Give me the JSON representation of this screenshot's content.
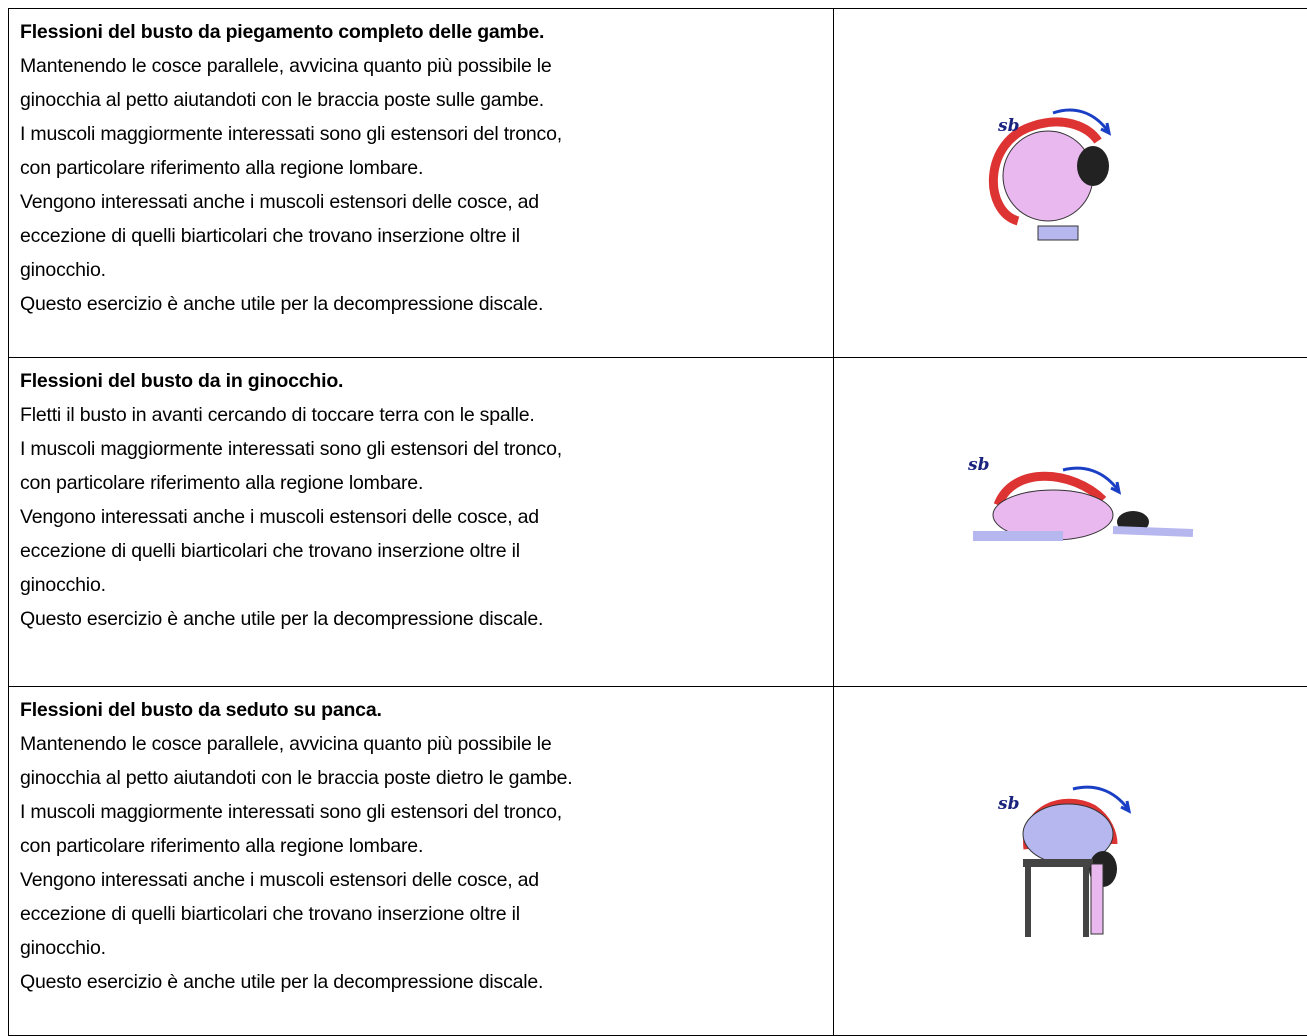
{
  "table": {
    "rows": [
      {
        "title": "Flessioni del busto da piegamento completo delle gambe.",
        "lines": [
          "Mantenendo le cosce parallele, avvicina quanto più possibile le",
          "ginocchia al petto aiutandoti con le braccia poste sulle gambe.",
          "I muscoli maggiormente interessati sono gli estensori del tronco,",
          "con particolare riferimento alla regione lombare.",
          "Vengono interessati anche i muscoli estensori delle cosce, ad",
          "eccezione di quelli biarticolari che trovano inserzione oltre il",
          "ginocchio.",
          "Questo esercizio è anche utile per la decompressione discale."
        ],
        "image_label": "sb"
      },
      {
        "title": "Flessioni del busto da in ginocchio.",
        "lines": [
          "Fletti il busto in avanti cercando di toccare terra con le spalle.",
          "I muscoli maggiormente interessati sono gli estensori del tronco,",
          "con particolare riferimento alla regione lombare.",
          "Vengono interessati anche i muscoli estensori delle cosce, ad",
          "eccezione di quelli biarticolari che trovano inserzione oltre il",
          "ginocchio.",
          "Questo esercizio è anche utile per la decompressione discale."
        ],
        "image_label": "sb"
      },
      {
        "title": "Flessioni del busto da seduto su panca.",
        "lines": [
          "Mantenendo le cosce parallele, avvicina quanto più possibile le",
          "ginocchia al petto aiutandoti con le braccia poste dietro le gambe.",
          "I muscoli maggiormente interessati sono gli estensori del tronco,",
          "con particolare riferimento alla regione lombare.",
          "Vengono interessati anche i muscoli estensori delle cosce, ad",
          "eccezione di quelli biarticolari che trovano inserzione oltre il",
          "ginocchio.",
          "Questo esercizio è anche utile per la decompressione discale."
        ],
        "image_label": "sb"
      }
    ]
  }
}
